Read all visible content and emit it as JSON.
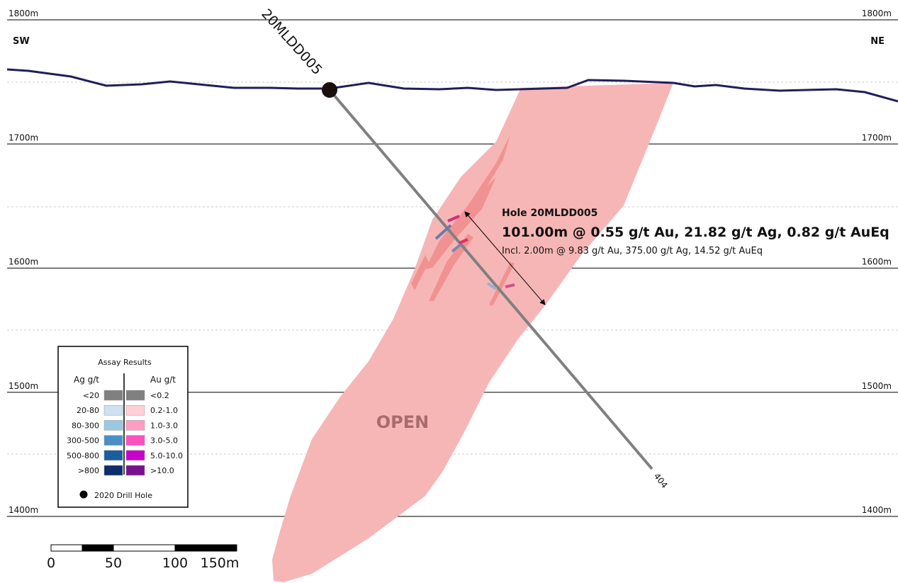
{
  "levels": [
    "1800m",
    "1700m",
    "1600m",
    "1500m",
    "1400m"
  ],
  "directions": {
    "left": "SW",
    "right": "NE"
  },
  "hole": {
    "name": "20MLDD005",
    "depth_label": "404",
    "title": "Hole 20MLDD005",
    "intercept": "101.00m @ 0.55 g/t Au, 21.82 g/t Ag, 0.82 g/t AuEq",
    "included": "Incl. 2.00m @ 9.83 g/t Au, 375.00 g/t Ag, 14.52 g/t AuEq"
  },
  "zone_label": "OPEN",
  "legend": {
    "title": "Assay Results",
    "ag_header": "Ag g/t",
    "au_header": "Au g/t",
    "rows": [
      {
        "ag": "<20",
        "au": "<0.2"
      },
      {
        "ag": "20-80",
        "au": "0.2-1.0"
      },
      {
        "ag": "80-300",
        "au": "1.0-3.0"
      },
      {
        "ag": "300-500",
        "au": "3.0-5.0"
      },
      {
        "ag": "500-800",
        "au": "5.0-10.0"
      },
      {
        "ag": ">800",
        "au": ">10.0"
      }
    ],
    "drill_hole": "2020 Drill Hole"
  },
  "scale_bar": [
    "0",
    "50",
    "100",
    "150m"
  ]
}
